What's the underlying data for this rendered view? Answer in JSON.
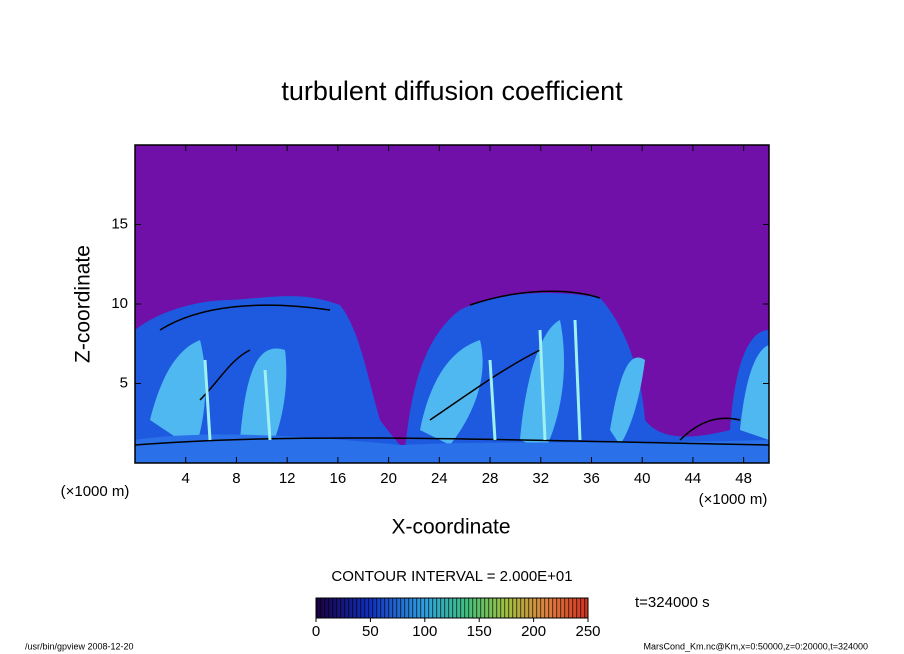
{
  "chart_data": {
    "type": "contour",
    "title": "turbulent diffusion coefficient",
    "xlabel": "X-coordinate",
    "ylabel": "Z-coordinate",
    "x_unit": "(×1000 m)",
    "y_unit": "(×1000 m)",
    "xlim": [
      0,
      50
    ],
    "xticks": [
      4,
      8,
      12,
      16,
      20,
      24,
      28,
      32,
      36,
      40,
      44,
      48
    ],
    "ylim": [
      0,
      20
    ],
    "yticks": [
      5,
      10,
      15
    ],
    "contour_interval": "CONTOUR INTERVAL = 2.000E+01",
    "colorbar_lim": [
      0,
      250
    ],
    "colorbar_ticks": [
      0,
      50,
      100,
      150,
      200,
      250
    ],
    "time_label": "t=324000 s",
    "footer_left": "/usr/bin/gpview  2008-12-20",
    "footer_right": "MarsCond_Km.nc@Km,x=0:50000,z=0:20000,t=324000"
  }
}
